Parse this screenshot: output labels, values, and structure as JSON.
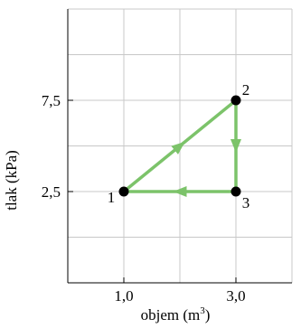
{
  "chart_data": {
    "type": "line",
    "xlabel": "objem (m",
    "xlabel_sup": "3",
    "xlabel_end": ")",
    "ylabel": "tlak (kPa)",
    "xlim": [
      0,
      4
    ],
    "ylim": [
      -2.5,
      12.5
    ],
    "x_grid": [
      0,
      1,
      2,
      3,
      4
    ],
    "y_grid": [
      -2.5,
      0,
      2.5,
      5,
      7.5,
      10,
      12.5
    ],
    "x_ticks": [
      {
        "value": 1,
        "label": "1,0"
      },
      {
        "value": 3,
        "label": "3,0"
      }
    ],
    "y_ticks": [
      {
        "value": 2.5,
        "label": "2,5"
      },
      {
        "value": 7.5,
        "label": "7,5"
      }
    ],
    "grid": true,
    "line_color": "#7cc36a",
    "point_color": "#000000",
    "points": [
      {
        "label": "1",
        "x": 1,
        "y": 2.5
      },
      {
        "label": "2",
        "x": 3,
        "y": 7.5
      },
      {
        "label": "3",
        "x": 3,
        "y": 2.5
      }
    ],
    "cycle": [
      {
        "from": "1",
        "to": "2"
      },
      {
        "from": "2",
        "to": "3"
      },
      {
        "from": "3",
        "to": "1"
      }
    ]
  }
}
